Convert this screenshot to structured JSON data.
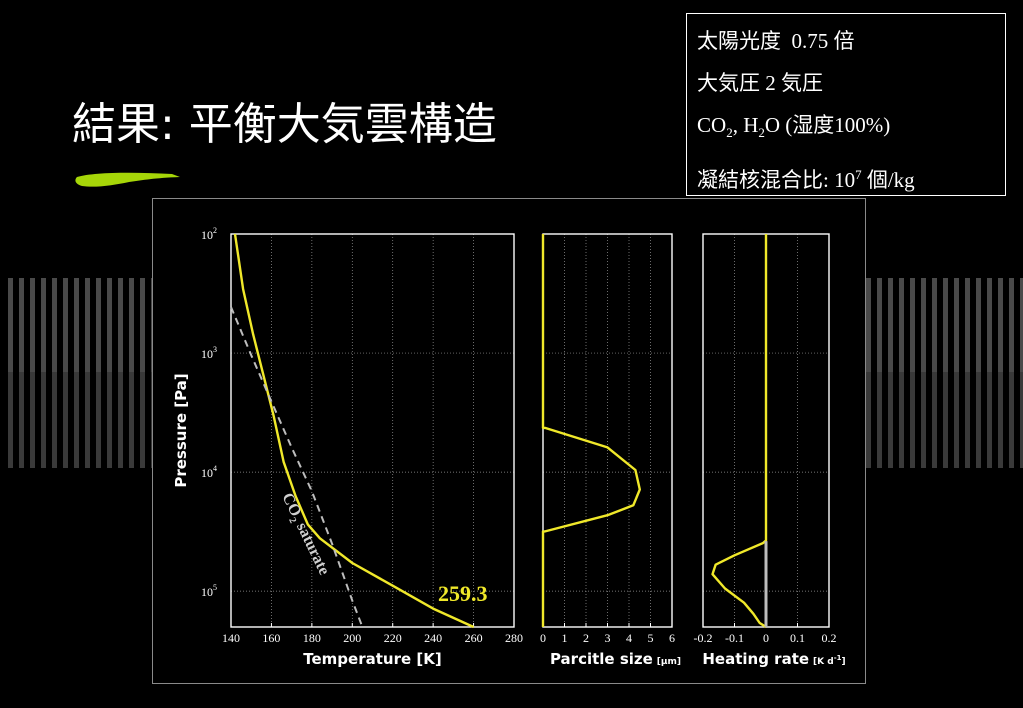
{
  "slide": {
    "title": "結果: 平衡大気雲構造"
  },
  "info_box": {
    "solar_label": "太陽光度",
    "solar_value": "0.75 倍",
    "pressure_label": "大気圧",
    "pressure_value": "2 気圧",
    "gas_co": "CO",
    "gas_co_sub": "2",
    "gas_sep": ", H",
    "gas_h2o_sub": "2",
    "gas_rest": "O (湿度100%)",
    "ccn_label": "凝結核混合比:",
    "ccn_base": "10",
    "ccn_exp": "7",
    "ccn_unit": "個/kg"
  },
  "colors": {
    "profile": "#f0e82a",
    "saturation": "#bdbdbd",
    "accent_brush": "#a6d608",
    "grid": "#9a9a9a"
  },
  "chart_data": [
    {
      "type": "line",
      "xlabel": "Temperature [K]",
      "ylabel": "Pressure [Pa]",
      "x_ticks": [
        140,
        160,
        180,
        200,
        220,
        240,
        260,
        280
      ],
      "xlim": [
        140,
        280
      ],
      "ylim": [
        100,
        200000
      ],
      "y_scale": "log-inverted",
      "y_tick_labels": [
        {
          "value": 100,
          "base": "10",
          "exp": "2"
        },
        {
          "value": 1000,
          "base": "10",
          "exp": "3"
        },
        {
          "value": 10000,
          "base": "10",
          "exp": "4"
        },
        {
          "value": 100000,
          "base": "10",
          "exp": "5"
        }
      ],
      "series": [
        {
          "style": "solid",
          "points": [
            [
              142,
              100
            ],
            [
              146,
              290
            ],
            [
              151,
              700
            ],
            [
              156,
              1520
            ],
            [
              161,
              3300
            ],
            [
              166,
              8200
            ],
            [
              172,
              16000
            ],
            [
              178,
              27500
            ],
            [
              184,
              36000
            ],
            [
              200,
              58000
            ],
            [
              220,
              90000
            ],
            [
              240,
              140000
            ],
            [
              260,
              200000
            ]
          ]
        },
        {
          "name": "CO2 saturate",
          "name_main": "CO",
          "name_sub": "2",
          "name_rest": " saturate",
          "style": "dashed",
          "points": [
            [
              140,
              410
            ],
            [
              150,
              1040
            ],
            [
              160,
              2550
            ],
            [
              170,
              6200
            ],
            [
              180,
              14500
            ],
            [
              190,
              40000
            ],
            [
              200,
              120000
            ],
            [
              205,
              200000
            ]
          ]
        }
      ],
      "annotation": "259.3"
    },
    {
      "type": "line",
      "xlabel": "Parcitle size",
      "xlabel_unit": "[μm]",
      "x_ticks": [
        0,
        1,
        2,
        3,
        4,
        5,
        6
      ],
      "xlim": [
        0,
        6
      ],
      "ylim": [
        100,
        200000
      ],
      "series": [
        {
          "style": "solid",
          "points": [
            [
              0,
              100
            ],
            [
              0,
              4250
            ],
            [
              0.1,
              4250
            ],
            [
              3,
              6200
            ],
            [
              4.3,
              9600
            ],
            [
              4.5,
              14000
            ],
            [
              4.2,
              19000
            ],
            [
              3,
              23000
            ],
            [
              0.1,
              31500
            ],
            [
              0,
              31500
            ],
            [
              0,
              200000
            ]
          ]
        }
      ]
    },
    {
      "type": "line",
      "xlabel": "Heating rate",
      "xlabel_unit": "[K d",
      "xlabel_unit_exp": "-1",
      "xlabel_unit_end": "]",
      "x_ticks": [
        -0.2,
        -0.1,
        0,
        0.1,
        0.2
      ],
      "x_tick_labels": [
        "-0.2",
        "-0.1",
        "0",
        "0.1",
        "0.2"
      ],
      "xlim": [
        -0.2,
        0.2
      ],
      "ylim": [
        100,
        200000
      ],
      "series": [
        {
          "style": "solid",
          "points": [
            [
              0,
              100
            ],
            [
              0,
              37500
            ],
            [
              -0.01,
              39500
            ],
            [
              -0.1,
              50000
            ],
            [
              -0.16,
              60000
            ],
            [
              -0.17,
              72000
            ],
            [
              -0.13,
              95000
            ],
            [
              -0.07,
              125000
            ],
            [
              -0.04,
              155000
            ],
            [
              -0.02,
              185000
            ],
            [
              0,
              200000
            ]
          ]
        },
        {
          "style": "solid-gray",
          "points": [
            [
              0,
              38000
            ],
            [
              0,
              200000
            ]
          ]
        }
      ]
    }
  ]
}
